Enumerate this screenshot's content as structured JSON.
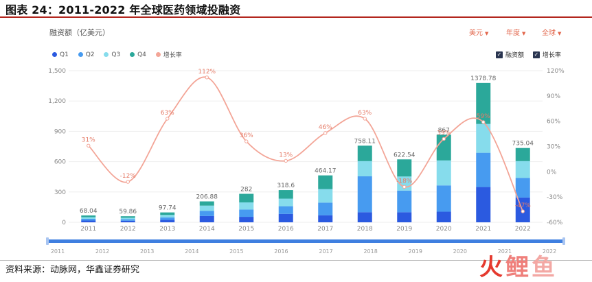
{
  "figure_title": "图表 24：2011-2022 年全球医药领域投融资",
  "metric_label": "融资额（亿美元）",
  "filters": {
    "currency": "美元",
    "period": "年度",
    "region": "全球"
  },
  "legend": [
    "Q1",
    "Q2",
    "Q3",
    "Q4",
    "增长率"
  ],
  "toggles": [
    "融资额",
    "增长率"
  ],
  "slider_labels": [
    "2011",
    "2012",
    "2013",
    "2014",
    "2015",
    "2016",
    "2017",
    "2018",
    "2019",
    "2020",
    "2021",
    "2022"
  ],
  "source": "资料来源：动脉网，华鑫证券研究",
  "watermark_logo": "火鲤鱼",
  "colors": {
    "Q1": "#2b5ae0",
    "Q2": "#479bf0",
    "Q3": "#86dcec",
    "Q4": "#2ba89a",
    "growth": "#f3a597",
    "accent": "#e2654a"
  },
  "chart_data": {
    "type": "bar",
    "stacked": true,
    "categories": [
      "2011",
      "2012",
      "2013",
      "2014",
      "2015",
      "2016",
      "2017",
      "2018",
      "2019",
      "2020",
      "2021",
      "2022"
    ],
    "series": [
      {
        "name": "Q1",
        "values": [
          17,
          15,
          24,
          62,
          54,
          83,
          70,
          100,
          100,
          105,
          349,
          245
        ]
      },
      {
        "name": "Q2",
        "values": [
          17,
          15,
          25,
          52,
          72,
          76,
          125,
          355,
          214,
          260,
          339,
          195
        ]
      },
      {
        "name": "Q3",
        "values": [
          17,
          15,
          24,
          51,
          71,
          75,
          134,
          150,
          139,
          247,
          285,
          165
        ]
      },
      {
        "name": "Q4",
        "values": [
          17.04,
          14.86,
          24.74,
          41.88,
          85,
          84.6,
          135.17,
          153.11,
          169.54,
          255,
          405.78,
          130.04
        ]
      }
    ],
    "totals": [
      68.04,
      59.86,
      97.74,
      206.88,
      282,
      318.6,
      464.17,
      758.11,
      622.54,
      867,
      1378.78,
      735.04
    ],
    "total_labels": [
      "68.04",
      "59.86",
      "97.74",
      "206.88",
      "282",
      "318.6",
      "464.17",
      "758.11",
      "622.54",
      "867",
      "1378.78",
      "735.04"
    ],
    "line": {
      "name": "增长率",
      "axis": "right",
      "values": [
        31,
        -12,
        63,
        112,
        36,
        13,
        46,
        63,
        -18,
        39,
        59,
        -47
      ],
      "labels": [
        "31%",
        "-12%",
        "63%",
        "112%",
        "36%",
        "13%",
        "46%",
        "63%",
        "-18%",
        "39%",
        "59%",
        "-47%"
      ]
    },
    "y_left": {
      "min": 0,
      "max": 1500,
      "ticks": [
        0,
        300,
        600,
        900,
        1200,
        1500
      ],
      "tick_labels": [
        "0",
        "300",
        "600",
        "900",
        "1,200",
        "1,500"
      ]
    },
    "y_right": {
      "min": -60,
      "max": 120,
      "ticks": [
        -60,
        -30,
        0,
        30,
        60,
        90,
        120
      ],
      "tick_labels": [
        "-60%",
        "-30%",
        "0%",
        "30%",
        "60%",
        "90%",
        "120%"
      ]
    },
    "grid": true,
    "legend_position": "top-left"
  }
}
